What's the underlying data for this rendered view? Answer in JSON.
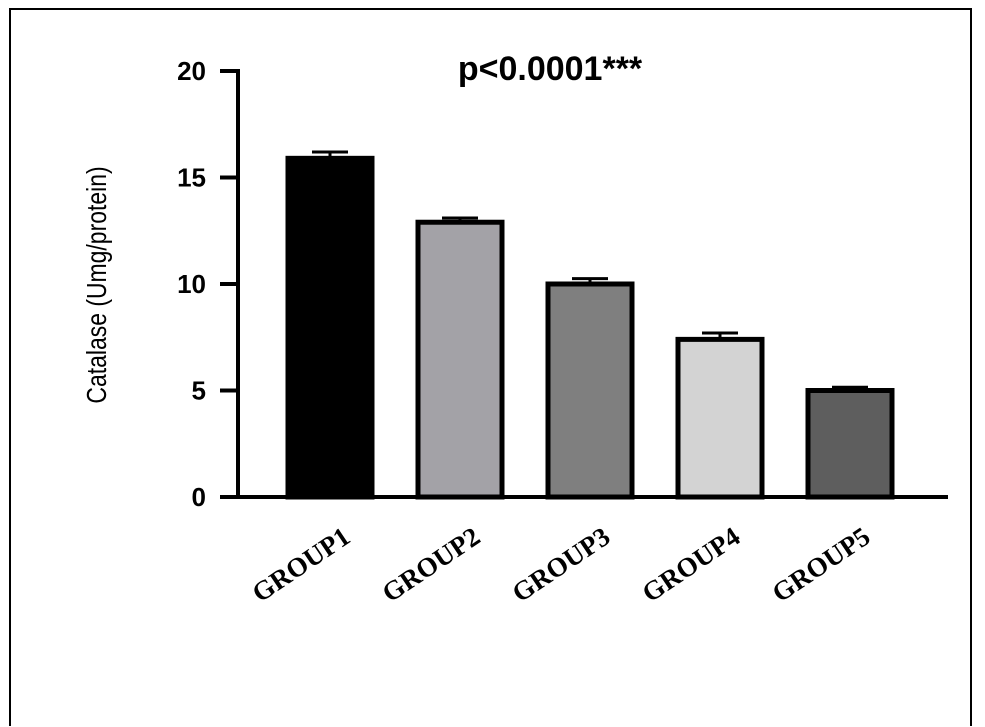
{
  "chart_data": {
    "type": "bar",
    "title": "p<0.0001***",
    "xlabel": "",
    "ylabel": "Catalase (Umg/protein)",
    "categories": [
      "GROUP1",
      "GROUP2",
      "GROUP3",
      "GROUP4",
      "GROUP5"
    ],
    "values": [
      15.9,
      12.9,
      10.0,
      7.4,
      5.0
    ],
    "errors": [
      0.3,
      0.2,
      0.25,
      0.3,
      0.15
    ],
    "colors": [
      "#000000",
      "#a3a2a7",
      "#7f7f7f",
      "#d3d3d3",
      "#5e5e5e"
    ],
    "ylim": [
      0,
      20
    ],
    "yticks": [
      0,
      5,
      10,
      15,
      20
    ],
    "grid": false,
    "legend": "none"
  }
}
